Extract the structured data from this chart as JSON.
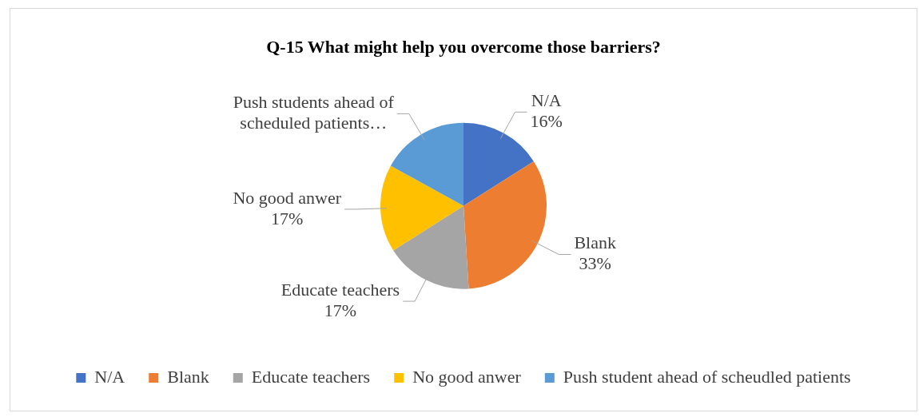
{
  "chart_data": {
    "type": "pie",
    "title": "Q-15 What might help you overcome those barriers?",
    "categories": [
      "N/A",
      "Blank",
      "Educate teachers",
      "No good anwer",
      "Push student ahead of scheudled patients"
    ],
    "values": [
      16,
      33,
      17,
      17,
      17
    ],
    "colors": [
      "#4472c4",
      "#ed7d31",
      "#a5a5a5",
      "#ffc000",
      "#5b9bd5"
    ],
    "value_labels": [
      "16%",
      "33%",
      "17%",
      "17%",
      null
    ],
    "annotations": [
      {
        "text": "N/A",
        "x": "N/A"
      },
      {
        "text": "Blank",
        "x": "Blank"
      },
      {
        "text": "Educate teachers",
        "x": "Educate teachers"
      },
      {
        "text": "No good anwer",
        "x": "No good anwer"
      },
      {
        "text": "Push students ahead of scheduled patients…",
        "x": "Push student ahead of scheudled patients"
      }
    ],
    "legend": "bottom"
  }
}
